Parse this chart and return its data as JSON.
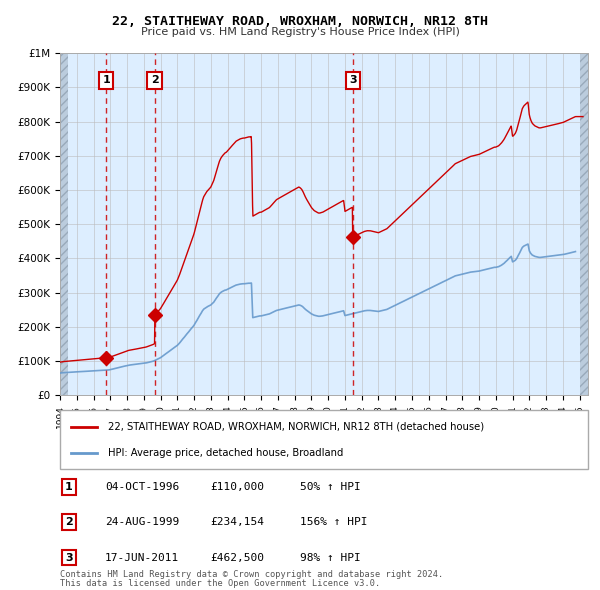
{
  "title": "22, STAITHEWAY ROAD, WROXHAM, NORWICH, NR12 8TH",
  "subtitle": "Price paid vs. HM Land Registry's House Price Index (HPI)",
  "sale_dates": [
    1996.75,
    1999.65,
    2011.46
  ],
  "sale_prices": [
    110000,
    234154,
    462500
  ],
  "sale_labels": [
    "1",
    "2",
    "3"
  ],
  "sale_date_strings": [
    "04-OCT-1996",
    "24-AUG-1999",
    "17-JUN-2011"
  ],
  "sale_price_strings": [
    "£110,000",
    "£234,154",
    "£462,500"
  ],
  "sale_hpi_strings": [
    "50% ↑ HPI",
    "156% ↑ HPI",
    "98% ↑ HPI"
  ],
  "legend_line1": "22, STAITHEWAY ROAD, WROXHAM, NORWICH, NR12 8TH (detached house)",
  "legend_line2": "HPI: Average price, detached house, Broadland",
  "footer1": "Contains HM Land Registry data © Crown copyright and database right 2024.",
  "footer2": "This data is licensed under the Open Government Licence v3.0.",
  "xlim": [
    1994.0,
    2025.5
  ],
  "ylim": [
    0,
    1000000
  ],
  "line_color_red": "#cc0000",
  "line_color_blue": "#6699cc",
  "bg_color": "#ddeeff",
  "hatch_color": "#bbccdd",
  "grid_color": "#bbbbbb",
  "yticks": [
    0,
    100000,
    200000,
    300000,
    400000,
    500000,
    600000,
    700000,
    800000,
    900000,
    1000000
  ],
  "ytick_labels": [
    "£0",
    "£100K",
    "£200K",
    "£300K",
    "£400K",
    "£500K",
    "£600K",
    "£700K",
    "£800K",
    "£900K",
    "£1M"
  ],
  "hpi_years": [
    1994.0,
    1994.08,
    1994.17,
    1994.25,
    1994.33,
    1994.42,
    1994.5,
    1994.58,
    1994.67,
    1994.75,
    1994.83,
    1994.92,
    1995.0,
    1995.08,
    1995.17,
    1995.25,
    1995.33,
    1995.42,
    1995.5,
    1995.58,
    1995.67,
    1995.75,
    1995.83,
    1995.92,
    1996.0,
    1996.08,
    1996.17,
    1996.25,
    1996.33,
    1996.42,
    1996.5,
    1996.58,
    1996.67,
    1996.75,
    1996.83,
    1996.92,
    1997.0,
    1997.08,
    1997.17,
    1997.25,
    1997.33,
    1997.42,
    1997.5,
    1997.58,
    1997.67,
    1997.75,
    1997.83,
    1997.92,
    1998.0,
    1998.08,
    1998.17,
    1998.25,
    1998.33,
    1998.42,
    1998.5,
    1998.58,
    1998.67,
    1998.75,
    1998.83,
    1998.92,
    1999.0,
    1999.08,
    1999.17,
    1999.25,
    1999.33,
    1999.42,
    1999.5,
    1999.58,
    1999.67,
    1999.75,
    1999.83,
    1999.92,
    2000.0,
    2000.08,
    2000.17,
    2000.25,
    2000.33,
    2000.42,
    2000.5,
    2000.58,
    2000.67,
    2000.75,
    2000.83,
    2000.92,
    2001.0,
    2001.08,
    2001.17,
    2001.25,
    2001.33,
    2001.42,
    2001.5,
    2001.58,
    2001.67,
    2001.75,
    2001.83,
    2001.92,
    2002.0,
    2002.08,
    2002.17,
    2002.25,
    2002.33,
    2002.42,
    2002.5,
    2002.58,
    2002.67,
    2002.75,
    2002.83,
    2002.92,
    2003.0,
    2003.08,
    2003.17,
    2003.25,
    2003.33,
    2003.42,
    2003.5,
    2003.58,
    2003.67,
    2003.75,
    2003.83,
    2003.92,
    2004.0,
    2004.08,
    2004.17,
    2004.25,
    2004.33,
    2004.42,
    2004.5,
    2004.58,
    2004.67,
    2004.75,
    2004.83,
    2004.92,
    2005.0,
    2005.08,
    2005.17,
    2005.25,
    2005.33,
    2005.42,
    2005.5,
    2005.58,
    2005.67,
    2005.75,
    2005.83,
    2005.92,
    2006.0,
    2006.08,
    2006.17,
    2006.25,
    2006.33,
    2006.42,
    2006.5,
    2006.58,
    2006.67,
    2006.75,
    2006.83,
    2006.92,
    2007.0,
    2007.08,
    2007.17,
    2007.25,
    2007.33,
    2007.42,
    2007.5,
    2007.58,
    2007.67,
    2007.75,
    2007.83,
    2007.92,
    2008.0,
    2008.08,
    2008.17,
    2008.25,
    2008.33,
    2008.42,
    2008.5,
    2008.58,
    2008.67,
    2008.75,
    2008.83,
    2008.92,
    2009.0,
    2009.08,
    2009.17,
    2009.25,
    2009.33,
    2009.42,
    2009.5,
    2009.58,
    2009.67,
    2009.75,
    2009.83,
    2009.92,
    2010.0,
    2010.08,
    2010.17,
    2010.25,
    2010.33,
    2010.42,
    2010.5,
    2010.58,
    2010.67,
    2010.75,
    2010.83,
    2010.92,
    2011.0,
    2011.08,
    2011.17,
    2011.25,
    2011.33,
    2011.42,
    2011.5,
    2011.58,
    2011.67,
    2011.75,
    2011.83,
    2011.92,
    2012.0,
    2012.08,
    2012.17,
    2012.25,
    2012.33,
    2012.42,
    2012.5,
    2012.58,
    2012.67,
    2012.75,
    2012.83,
    2012.92,
    2013.0,
    2013.08,
    2013.17,
    2013.25,
    2013.33,
    2013.42,
    2013.5,
    2013.58,
    2013.67,
    2013.75,
    2013.83,
    2013.92,
    2014.0,
    2014.08,
    2014.17,
    2014.25,
    2014.33,
    2014.42,
    2014.5,
    2014.58,
    2014.67,
    2014.75,
    2014.83,
    2014.92,
    2015.0,
    2015.08,
    2015.17,
    2015.25,
    2015.33,
    2015.42,
    2015.5,
    2015.58,
    2015.67,
    2015.75,
    2015.83,
    2015.92,
    2016.0,
    2016.08,
    2016.17,
    2016.25,
    2016.33,
    2016.42,
    2016.5,
    2016.58,
    2016.67,
    2016.75,
    2016.83,
    2016.92,
    2017.0,
    2017.08,
    2017.17,
    2017.25,
    2017.33,
    2017.42,
    2017.5,
    2017.58,
    2017.67,
    2017.75,
    2017.83,
    2017.92,
    2018.0,
    2018.08,
    2018.17,
    2018.25,
    2018.33,
    2018.42,
    2018.5,
    2018.58,
    2018.67,
    2018.75,
    2018.83,
    2018.92,
    2019.0,
    2019.08,
    2019.17,
    2019.25,
    2019.33,
    2019.42,
    2019.5,
    2019.58,
    2019.67,
    2019.75,
    2019.83,
    2019.92,
    2020.0,
    2020.08,
    2020.17,
    2020.25,
    2020.33,
    2020.42,
    2020.5,
    2020.58,
    2020.67,
    2020.75,
    2020.83,
    2020.92,
    2021.0,
    2021.08,
    2021.17,
    2021.25,
    2021.33,
    2021.42,
    2021.5,
    2021.58,
    2021.67,
    2021.75,
    2021.83,
    2021.92,
    2022.0,
    2022.08,
    2022.17,
    2022.25,
    2022.33,
    2022.42,
    2022.5,
    2022.58,
    2022.67,
    2022.75,
    2022.83,
    2022.92,
    2023.0,
    2023.08,
    2023.17,
    2023.25,
    2023.33,
    2023.42,
    2023.5,
    2023.58,
    2023.67,
    2023.75,
    2023.83,
    2023.92,
    2024.0,
    2024.08,
    2024.17,
    2024.25,
    2024.33,
    2024.42,
    2024.5,
    2024.58,
    2024.67,
    2024.75
  ],
  "hpi_values": [
    65000,
    65500,
    66000,
    66200,
    66500,
    66800,
    67000,
    67200,
    67500,
    67800,
    68000,
    68200,
    68500,
    68800,
    69000,
    69200,
    69500,
    69800,
    70000,
    70200,
    70500,
    70800,
    71000,
    71200,
    71500,
    71800,
    72000,
    72200,
    72500,
    72800,
    73000,
    73200,
    73500,
    73800,
    74000,
    74200,
    75000,
    76000,
    77000,
    78000,
    79000,
    80000,
    81000,
    82000,
    83000,
    84000,
    85000,
    86000,
    87000,
    88000,
    88500,
    89000,
    89500,
    90000,
    90500,
    91000,
    91500,
    92000,
    92500,
    93000,
    93500,
    94000,
    95000,
    96000,
    97000,
    98000,
    99000,
    100000,
    102000,
    104000,
    106000,
    108000,
    110000,
    113000,
    116000,
    119000,
    122000,
    125000,
    128000,
    131000,
    134000,
    137000,
    140000,
    143000,
    146000,
    150000,
    155000,
    160000,
    165000,
    170000,
    175000,
    180000,
    185000,
    190000,
    195000,
    200000,
    205000,
    212000,
    219000,
    226000,
    233000,
    240000,
    247000,
    252000,
    255000,
    258000,
    260000,
    262000,
    264000,
    268000,
    272000,
    278000,
    284000,
    290000,
    296000,
    300000,
    303000,
    305000,
    307000,
    308000,
    310000,
    312000,
    314000,
    316000,
    318000,
    320000,
    322000,
    323000,
    324000,
    325000,
    325500,
    326000,
    326000,
    326500,
    327000,
    327500,
    327500,
    328000,
    227000,
    228000,
    229000,
    230000,
    231000,
    232000,
    232000,
    233000,
    234000,
    235000,
    236000,
    237000,
    238000,
    240000,
    242000,
    244000,
    246000,
    248000,
    249000,
    250000,
    251000,
    252000,
    253000,
    254000,
    255000,
    256000,
    257000,
    258000,
    259000,
    260000,
    261000,
    262000,
    263000,
    264000,
    263000,
    261000,
    258000,
    254000,
    250000,
    247000,
    244000,
    241000,
    238000,
    236000,
    234000,
    233000,
    232000,
    231000,
    231000,
    231500,
    232000,
    233000,
    234000,
    235000,
    236000,
    237000,
    238000,
    239000,
    240000,
    241000,
    242000,
    243000,
    244000,
    245000,
    246000,
    247000,
    233000,
    234000,
    235000,
    236000,
    237000,
    238000,
    239000,
    240000,
    241000,
    242000,
    243000,
    244000,
    245000,
    246000,
    247000,
    247500,
    248000,
    248000,
    248000,
    247500,
    247000,
    246500,
    246000,
    245500,
    245000,
    246000,
    247000,
    248000,
    249000,
    250000,
    251000,
    253000,
    255000,
    257000,
    259000,
    261000,
    263000,
    265000,
    267000,
    269000,
    271000,
    273000,
    275000,
    277000,
    279000,
    281000,
    283000,
    285000,
    287000,
    289000,
    291000,
    293000,
    295000,
    297000,
    299000,
    301000,
    303000,
    305000,
    307000,
    309000,
    311000,
    313000,
    315000,
    317000,
    319000,
    321000,
    323000,
    325000,
    327000,
    329000,
    331000,
    333000,
    335000,
    337000,
    339000,
    341000,
    343000,
    345000,
    347000,
    349000,
    350000,
    351000,
    352000,
    353000,
    354000,
    355000,
    356000,
    357000,
    358000,
    359000,
    360000,
    360500,
    361000,
    361500,
    362000,
    362500,
    363000,
    364000,
    365000,
    366000,
    367000,
    368000,
    369000,
    370000,
    371000,
    372000,
    373000,
    374000,
    374000,
    375000,
    376000,
    378000,
    380000,
    383000,
    386000,
    390000,
    394000,
    398000,
    402000,
    406000,
    390000,
    392000,
    395000,
    400000,
    408000,
    416000,
    424000,
    432000,
    436000,
    438000,
    440000,
    442000,
    422000,
    415000,
    410000,
    408000,
    406000,
    405000,
    404000,
    403000,
    403000,
    403500,
    404000,
    404500,
    405000,
    405500,
    406000,
    406500,
    407000,
    407500,
    408000,
    408500,
    409000,
    409500,
    410000,
    410500,
    411000,
    412000,
    413000,
    414000,
    415000,
    416000,
    417000,
    418000,
    419000,
    420000,
    421000,
    422000,
    415000,
    416000,
    417000,
    418000,
    419000,
    420000,
    421000,
    422000,
    423000,
    424000
  ]
}
